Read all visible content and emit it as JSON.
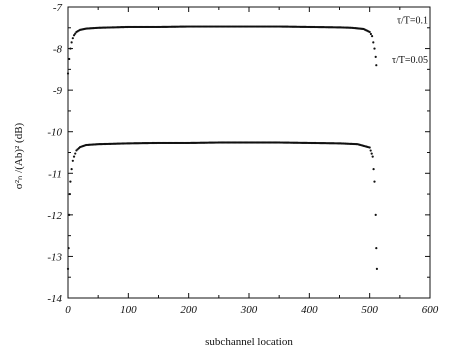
{
  "chart_data": {
    "type": "scatter",
    "title": "",
    "xlabel": "subchannel location",
    "ylabel": "σ²ₙ /(Ab)² (dB)",
    "xlim": [
      0,
      600
    ],
    "ylim": [
      -14,
      -7
    ],
    "xticks": [
      "0",
      "100",
      "200",
      "300",
      "400",
      "500",
      "600"
    ],
    "yticks": [
      "-7",
      "-8",
      "-9",
      "-10",
      "-11",
      "-12",
      "-13",
      "-14"
    ],
    "grid": false,
    "legend_position": "top-right",
    "series": [
      {
        "name": "τ/T=0.1",
        "x": [
          0,
          2,
          4,
          6,
          8,
          10,
          14,
          20,
          30,
          50,
          100,
          150,
          200,
          250,
          300,
          350,
          400,
          450,
          470,
          490,
          500,
          504,
          506,
          508,
          510,
          511
        ],
        "y": [
          -8.6,
          -8.25,
          -8.0,
          -7.85,
          -7.75,
          -7.68,
          -7.6,
          -7.55,
          -7.52,
          -7.5,
          -7.48,
          -7.48,
          -7.47,
          -7.47,
          -7.47,
          -7.47,
          -7.48,
          -7.49,
          -7.5,
          -7.53,
          -7.6,
          -7.7,
          -7.85,
          -8.0,
          -8.2,
          -8.4
        ]
      },
      {
        "name": "τ/T=0.05",
        "x": [
          0,
          1,
          2,
          3,
          4,
          6,
          8,
          10,
          14,
          20,
          30,
          50,
          100,
          150,
          200,
          250,
          300,
          350,
          400,
          450,
          480,
          500,
          505,
          508,
          510,
          511,
          512
        ],
        "y": [
          -13.3,
          -12.8,
          -12.0,
          -11.5,
          -11.2,
          -10.9,
          -10.7,
          -10.6,
          -10.45,
          -10.37,
          -10.32,
          -10.3,
          -10.28,
          -10.27,
          -10.27,
          -10.26,
          -10.26,
          -10.26,
          -10.27,
          -10.28,
          -10.3,
          -10.38,
          -10.6,
          -11.2,
          -12.0,
          -12.8,
          -13.3
        ]
      }
    ]
  }
}
